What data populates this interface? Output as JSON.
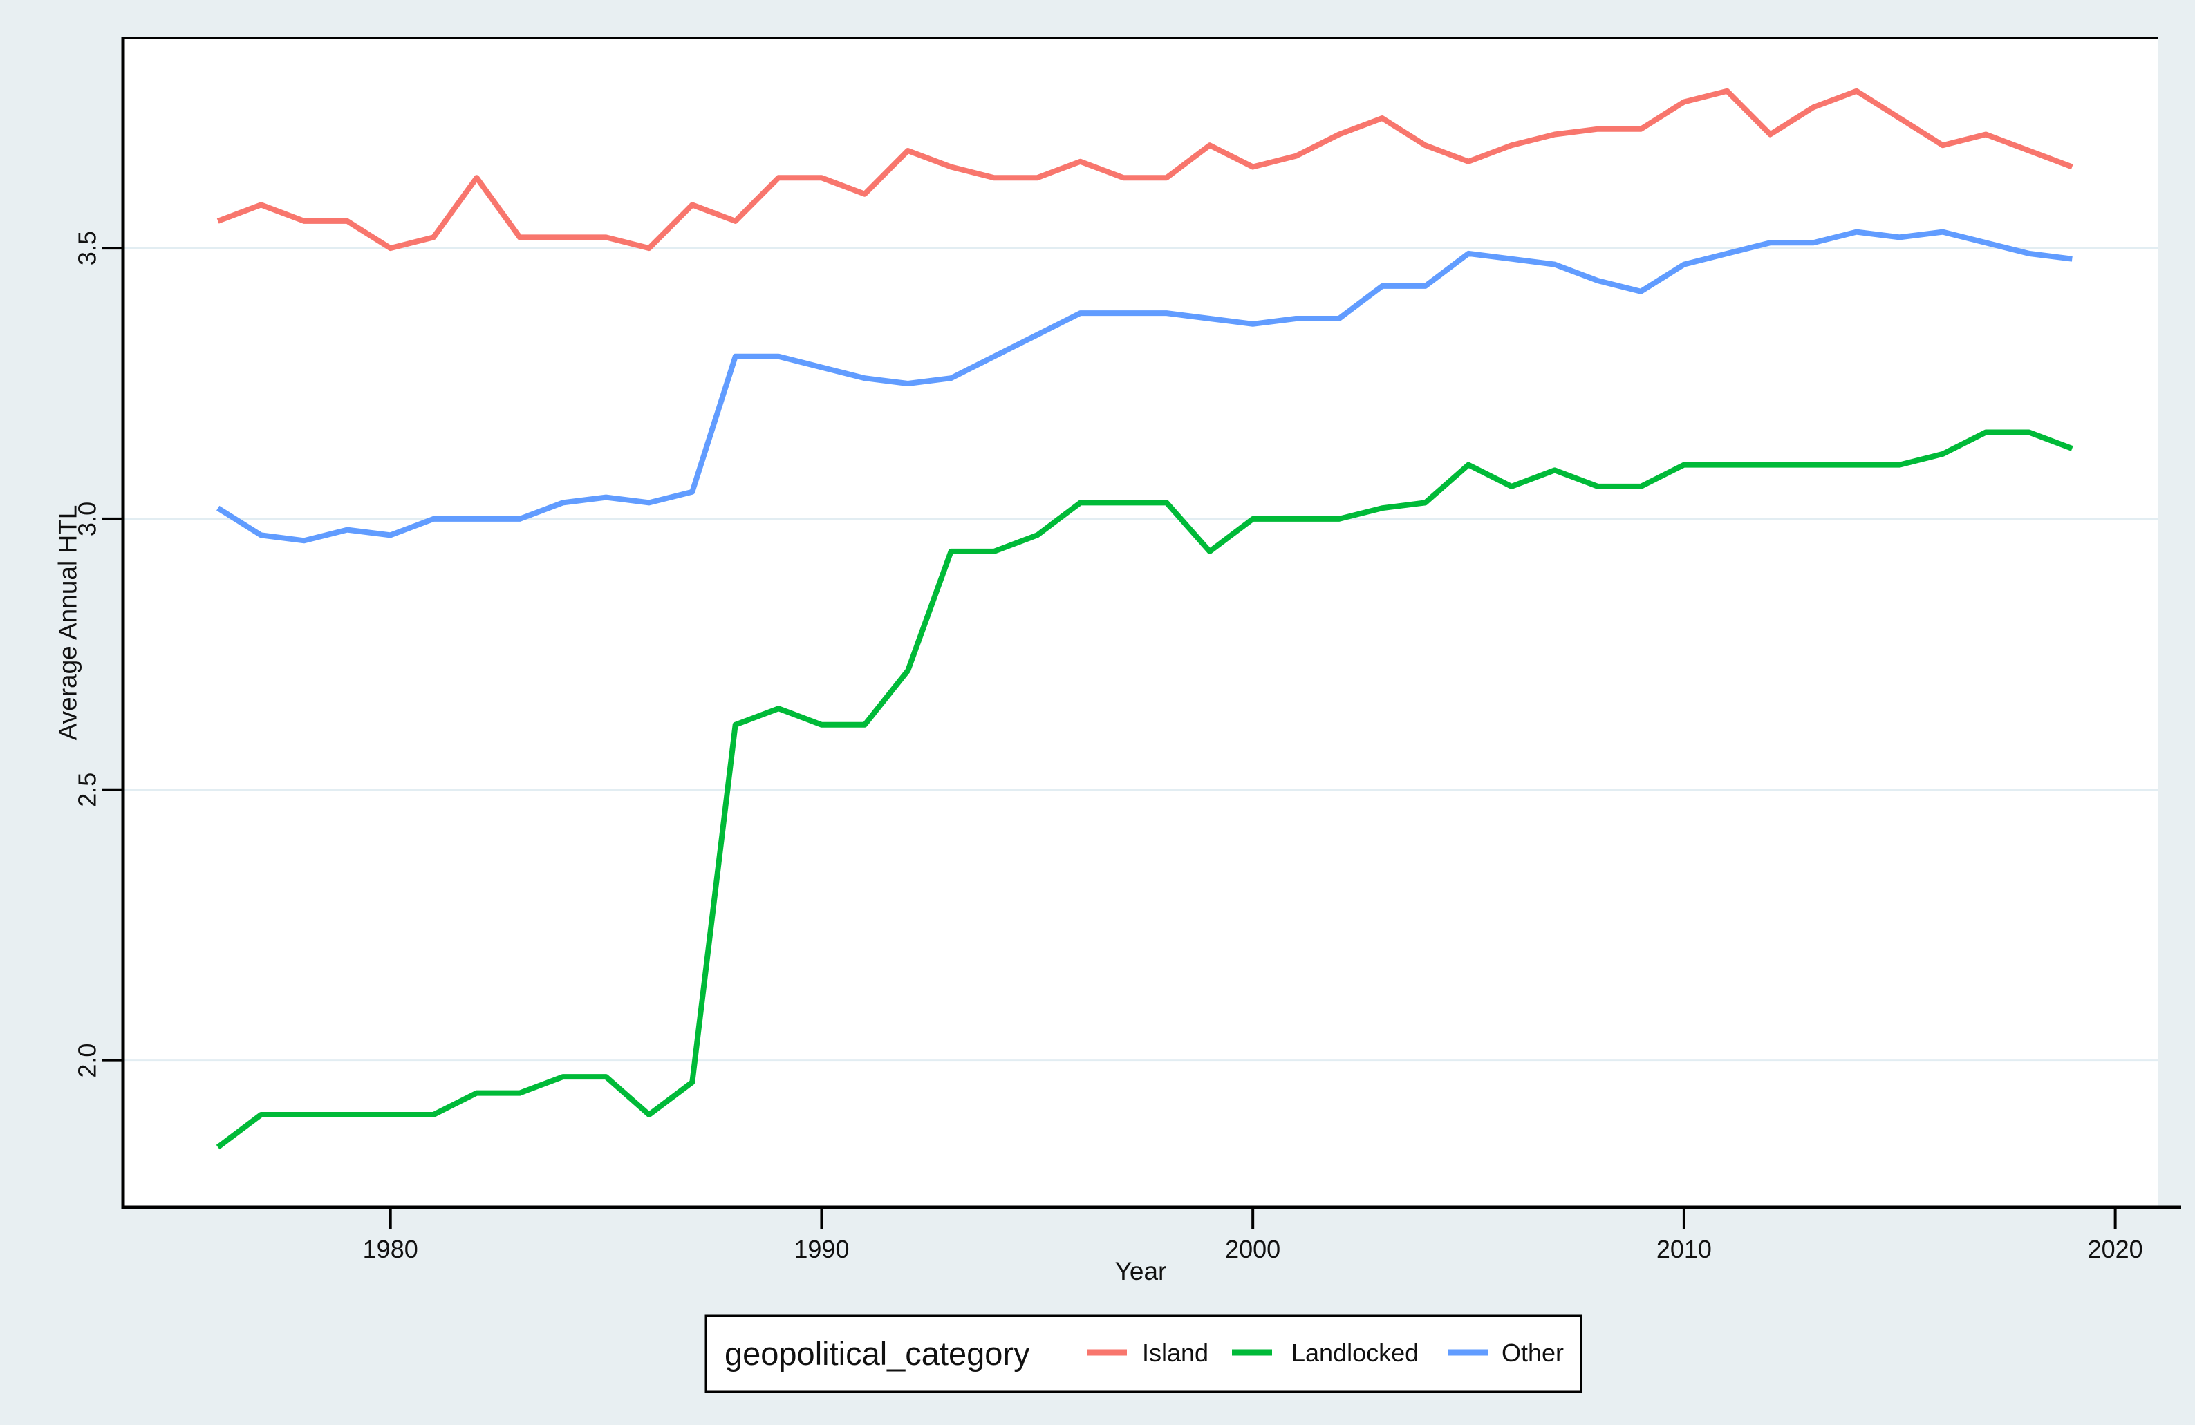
{
  "chart_data": {
    "type": "line",
    "title": "",
    "xlabel": "Year",
    "ylabel": "Average Annual HTL",
    "x": [
      1976,
      1977,
      1978,
      1979,
      1980,
      1981,
      1982,
      1983,
      1984,
      1985,
      1986,
      1987,
      1988,
      1989,
      1990,
      1991,
      1992,
      1993,
      1994,
      1995,
      1996,
      1997,
      1998,
      1999,
      2000,
      2001,
      2002,
      2003,
      2004,
      2005,
      2006,
      2007,
      2008,
      2009,
      2010,
      2011,
      2012,
      2013,
      2014,
      2015,
      2016,
      2017,
      2018,
      2019
    ],
    "series": [
      {
        "name": "Island",
        "color": "#f8766d",
        "values": [
          3.55,
          3.58,
          3.55,
          3.55,
          3.5,
          3.52,
          3.63,
          3.52,
          3.52,
          3.52,
          3.5,
          3.58,
          3.55,
          3.63,
          3.63,
          3.6,
          3.68,
          3.65,
          3.63,
          3.63,
          3.66,
          3.63,
          3.63,
          3.69,
          3.65,
          3.67,
          3.71,
          3.74,
          3.69,
          3.66,
          3.69,
          3.71,
          3.72,
          3.72,
          3.77,
          3.79,
          3.71,
          3.76,
          3.79,
          3.74,
          3.69,
          3.71,
          3.68,
          3.65
        ]
      },
      {
        "name": "Landlocked",
        "color": "#00ba38",
        "values": [
          1.84,
          1.9,
          1.9,
          1.9,
          1.9,
          1.9,
          1.94,
          1.94,
          1.97,
          1.97,
          1.9,
          1.96,
          2.62,
          2.65,
          2.62,
          2.62,
          2.72,
          2.94,
          2.94,
          2.97,
          3.03,
          3.03,
          3.03,
          2.94,
          3.0,
          3.0,
          3.0,
          3.02,
          3.03,
          3.1,
          3.06,
          3.09,
          3.06,
          3.06,
          3.1,
          3.1,
          3.1,
          3.1,
          3.1,
          3.1,
          3.12,
          3.16,
          3.16,
          3.13
        ]
      },
      {
        "name": "Other",
        "color": "#619cff",
        "values": [
          3.02,
          2.97,
          2.96,
          2.98,
          2.97,
          3.0,
          3.0,
          3.0,
          3.03,
          3.04,
          3.03,
          3.05,
          3.3,
          3.3,
          3.28,
          3.26,
          3.25,
          3.26,
          3.3,
          3.34,
          3.38,
          3.38,
          3.38,
          3.37,
          3.36,
          3.37,
          3.37,
          3.43,
          3.43,
          3.49,
          3.48,
          3.47,
          3.44,
          3.42,
          3.47,
          3.49,
          3.51,
          3.51,
          3.53,
          3.52,
          3.53,
          3.51,
          3.49,
          3.48
        ]
      }
    ],
    "x_ticks": [
      {
        "label": "1980",
        "value": 1980
      },
      {
        "label": "1990",
        "value": 1990
      },
      {
        "label": "2000",
        "value": 2000
      },
      {
        "label": "2010",
        "value": 2010
      },
      {
        "label": "2020",
        "value": 2020
      }
    ],
    "y_ticks": [
      {
        "label": "3.5",
        "value": 3.5
      },
      {
        "label": "3.0",
        "value": 3.0
      },
      {
        "label": "2.5",
        "value": 2.5
      },
      {
        "label": "2.0",
        "value": 2.0
      }
    ],
    "xlim": [
      1973.8,
      2021.0
    ],
    "ylim": [
      1.729,
      3.888
    ],
    "grid": "horizontal",
    "legend_position": "bottom"
  },
  "legend": {
    "title": "geopolitical_category",
    "entries": [
      "Island",
      "Landlocked",
      "Other"
    ]
  },
  "colors": {
    "background": "#e8eff2",
    "plot_background": "#ffffff",
    "gridline": "#e2edf2",
    "axis": "#000000",
    "tick_label": "#111111",
    "legend_title": "#333a52",
    "legend_border": "#000000",
    "legend_background": "#ffffff"
  }
}
